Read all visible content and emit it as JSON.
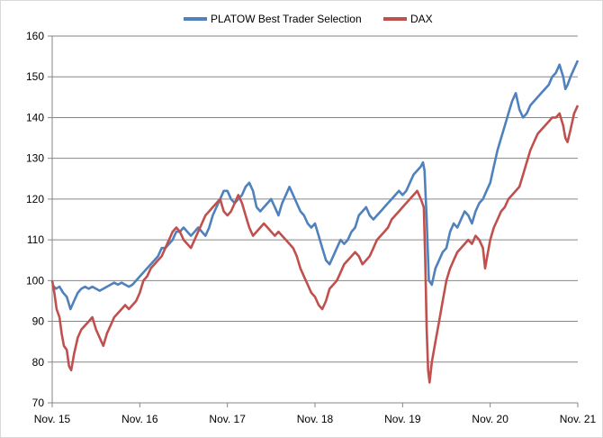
{
  "chart_data": {
    "type": "line",
    "title": "",
    "xlabel": "",
    "ylabel": "",
    "ylim": [
      70,
      160
    ],
    "yticks": [
      70,
      80,
      90,
      100,
      110,
      120,
      130,
      140,
      150,
      160
    ],
    "xlim": [
      0,
      72
    ],
    "xticks": [
      {
        "label": "Nov. 15",
        "x": 0
      },
      {
        "label": "Nov. 16",
        "x": 12
      },
      {
        "label": "Nov. 17",
        "x": 24
      },
      {
        "label": "Nov. 18",
        "x": 36
      },
      {
        "label": "Nov. 19",
        "x": 48
      },
      {
        "label": "Nov. 20",
        "x": 60
      },
      {
        "label": "Nov. 21",
        "x": 72
      }
    ],
    "grid": true,
    "legend_position": "top-center",
    "series": [
      {
        "name": "PLATOW Best Trader Selection",
        "color": "#4f81bd",
        "points": [
          [
            0,
            99
          ],
          [
            0.5,
            98
          ],
          [
            1,
            98.5
          ],
          [
            1.5,
            97
          ],
          [
            2,
            96
          ],
          [
            2.5,
            93
          ],
          [
            3,
            95
          ],
          [
            3.5,
            97
          ],
          [
            4,
            98
          ],
          [
            4.5,
            98.5
          ],
          [
            5,
            98
          ],
          [
            5.5,
            98.5
          ],
          [
            6,
            98
          ],
          [
            6.5,
            97.5
          ],
          [
            7,
            98
          ],
          [
            7.5,
            98.5
          ],
          [
            8,
            99
          ],
          [
            8.5,
            99.5
          ],
          [
            9,
            99
          ],
          [
            9.5,
            99.5
          ],
          [
            10,
            99
          ],
          [
            10.5,
            98.5
          ],
          [
            11,
            99
          ],
          [
            11.5,
            100
          ],
          [
            12,
            101
          ],
          [
            12.5,
            102
          ],
          [
            13,
            103
          ],
          [
            13.5,
            104
          ],
          [
            14,
            105
          ],
          [
            14.5,
            106
          ],
          [
            15,
            108
          ],
          [
            15.5,
            108
          ],
          [
            16,
            109
          ],
          [
            16.5,
            110
          ],
          [
            17,
            112
          ],
          [
            17.5,
            112
          ],
          [
            18,
            113
          ],
          [
            18.5,
            112
          ],
          [
            19,
            111
          ],
          [
            19.5,
            112
          ],
          [
            20,
            113
          ],
          [
            20.5,
            112
          ],
          [
            21,
            111
          ],
          [
            21.5,
            113
          ],
          [
            22,
            116
          ],
          [
            22.5,
            118
          ],
          [
            23,
            120
          ],
          [
            23.5,
            122
          ],
          [
            24,
            122
          ],
          [
            24.5,
            120
          ],
          [
            25,
            119
          ],
          [
            25.5,
            120
          ],
          [
            26,
            121
          ],
          [
            26.5,
            123
          ],
          [
            27,
            124
          ],
          [
            27.5,
            122
          ],
          [
            28,
            118
          ],
          [
            28.5,
            117
          ],
          [
            29,
            118
          ],
          [
            29.5,
            119
          ],
          [
            30,
            120
          ],
          [
            30.5,
            118
          ],
          [
            31,
            116
          ],
          [
            31.5,
            119
          ],
          [
            32,
            121
          ],
          [
            32.5,
            123
          ],
          [
            33,
            121
          ],
          [
            33.5,
            119
          ],
          [
            34,
            117
          ],
          [
            34.5,
            116
          ],
          [
            35,
            114
          ],
          [
            35.5,
            113
          ],
          [
            36,
            114
          ],
          [
            36.5,
            111
          ],
          [
            37,
            108
          ],
          [
            37.5,
            105
          ],
          [
            38,
            104
          ],
          [
            38.5,
            106
          ],
          [
            39,
            108
          ],
          [
            39.5,
            110
          ],
          [
            40,
            109
          ],
          [
            40.5,
            110
          ],
          [
            41,
            112
          ],
          [
            41.5,
            113
          ],
          [
            42,
            116
          ],
          [
            42.5,
            117
          ],
          [
            43,
            118
          ],
          [
            43.5,
            116
          ],
          [
            44,
            115
          ],
          [
            44.5,
            116
          ],
          [
            45,
            117
          ],
          [
            45.5,
            118
          ],
          [
            46,
            119
          ],
          [
            46.5,
            120
          ],
          [
            47,
            121
          ],
          [
            47.5,
            122
          ],
          [
            48,
            121
          ],
          [
            48.5,
            122
          ],
          [
            49,
            124
          ],
          [
            49.5,
            126
          ],
          [
            50,
            127
          ],
          [
            50.5,
            128
          ],
          [
            50.8,
            129
          ],
          [
            51,
            127
          ],
          [
            51.3,
            115
          ],
          [
            51.6,
            100
          ],
          [
            52,
            99
          ],
          [
            52.5,
            103
          ],
          [
            53,
            105
          ],
          [
            53.5,
            107
          ],
          [
            54,
            108
          ],
          [
            54.5,
            112
          ],
          [
            55,
            114
          ],
          [
            55.5,
            113
          ],
          [
            56,
            115
          ],
          [
            56.5,
            117
          ],
          [
            57,
            116
          ],
          [
            57.5,
            114
          ],
          [
            58,
            117
          ],
          [
            58.5,
            119
          ],
          [
            59,
            120
          ],
          [
            59.5,
            122
          ],
          [
            60,
            124
          ],
          [
            60.5,
            128
          ],
          [
            61,
            132
          ],
          [
            61.5,
            135
          ],
          [
            62,
            138
          ],
          [
            62.5,
            141
          ],
          [
            63,
            144
          ],
          [
            63.5,
            146
          ],
          [
            64,
            142
          ],
          [
            64.5,
            140
          ],
          [
            65,
            141
          ],
          [
            65.5,
            143
          ],
          [
            66,
            144
          ],
          [
            66.5,
            145
          ],
          [
            67,
            146
          ],
          [
            67.5,
            147
          ],
          [
            68,
            148
          ],
          [
            68.5,
            150
          ],
          [
            69,
            151
          ],
          [
            69.5,
            153
          ],
          [
            70,
            150
          ],
          [
            70.3,
            147
          ],
          [
            70.6,
            148
          ],
          [
            71,
            150
          ],
          [
            71.5,
            152
          ],
          [
            72,
            154
          ]
        ]
      },
      {
        "name": "DAX",
        "color": "#c0504d",
        "points": [
          [
            0,
            100
          ],
          [
            0.3,
            97
          ],
          [
            0.6,
            93
          ],
          [
            1,
            91
          ],
          [
            1.3,
            87
          ],
          [
            1.6,
            84
          ],
          [
            2,
            83
          ],
          [
            2.3,
            79
          ],
          [
            2.6,
            78
          ],
          [
            3,
            82
          ],
          [
            3.5,
            86
          ],
          [
            4,
            88
          ],
          [
            4.5,
            89
          ],
          [
            5,
            90
          ],
          [
            5.5,
            91
          ],
          [
            6,
            88
          ],
          [
            6.5,
            86
          ],
          [
            7,
            84
          ],
          [
            7.5,
            87
          ],
          [
            8,
            89
          ],
          [
            8.5,
            91
          ],
          [
            9,
            92
          ],
          [
            9.5,
            93
          ],
          [
            10,
            94
          ],
          [
            10.5,
            93
          ],
          [
            11,
            94
          ],
          [
            11.5,
            95
          ],
          [
            12,
            97
          ],
          [
            12.5,
            100
          ],
          [
            13,
            101
          ],
          [
            13.5,
            103
          ],
          [
            14,
            104
          ],
          [
            14.5,
            105
          ],
          [
            15,
            106
          ],
          [
            15.5,
            108
          ],
          [
            16,
            110
          ],
          [
            16.5,
            112
          ],
          [
            17,
            113
          ],
          [
            17.5,
            112
          ],
          [
            18,
            110
          ],
          [
            18.5,
            109
          ],
          [
            19,
            108
          ],
          [
            19.5,
            110
          ],
          [
            20,
            112
          ],
          [
            20.5,
            114
          ],
          [
            21,
            116
          ],
          [
            21.5,
            117
          ],
          [
            22,
            118
          ],
          [
            22.5,
            119
          ],
          [
            23,
            120
          ],
          [
            23.5,
            117
          ],
          [
            24,
            116
          ],
          [
            24.5,
            117
          ],
          [
            25,
            119
          ],
          [
            25.5,
            121
          ],
          [
            26,
            119
          ],
          [
            26.5,
            116
          ],
          [
            27,
            113
          ],
          [
            27.5,
            111
          ],
          [
            28,
            112
          ],
          [
            28.5,
            113
          ],
          [
            29,
            114
          ],
          [
            29.5,
            113
          ],
          [
            30,
            112
          ],
          [
            30.5,
            111
          ],
          [
            31,
            112
          ],
          [
            31.5,
            111
          ],
          [
            32,
            110
          ],
          [
            32.5,
            109
          ],
          [
            33,
            108
          ],
          [
            33.5,
            106
          ],
          [
            34,
            103
          ],
          [
            34.5,
            101
          ],
          [
            35,
            99
          ],
          [
            35.5,
            97
          ],
          [
            36,
            96
          ],
          [
            36.5,
            94
          ],
          [
            37,
            93
          ],
          [
            37.5,
            95
          ],
          [
            38,
            98
          ],
          [
            38.5,
            99
          ],
          [
            39,
            100
          ],
          [
            39.5,
            102
          ],
          [
            40,
            104
          ],
          [
            40.5,
            105
          ],
          [
            41,
            106
          ],
          [
            41.5,
            107
          ],
          [
            42,
            106
          ],
          [
            42.5,
            104
          ],
          [
            43,
            105
          ],
          [
            43.5,
            106
          ],
          [
            44,
            108
          ],
          [
            44.5,
            110
          ],
          [
            45,
            111
          ],
          [
            45.5,
            112
          ],
          [
            46,
            113
          ],
          [
            46.5,
            115
          ],
          [
            47,
            116
          ],
          [
            47.5,
            117
          ],
          [
            48,
            118
          ],
          [
            48.5,
            119
          ],
          [
            49,
            120
          ],
          [
            49.5,
            121
          ],
          [
            50,
            122
          ],
          [
            50.5,
            120
          ],
          [
            50.9,
            118
          ],
          [
            51.1,
            105
          ],
          [
            51.3,
            88
          ],
          [
            51.5,
            78
          ],
          [
            51.7,
            75
          ],
          [
            52,
            80
          ],
          [
            52.5,
            85
          ],
          [
            53,
            90
          ],
          [
            53.5,
            95
          ],
          [
            54,
            100
          ],
          [
            54.5,
            103
          ],
          [
            55,
            105
          ],
          [
            55.5,
            107
          ],
          [
            56,
            108
          ],
          [
            56.5,
            109
          ],
          [
            57,
            110
          ],
          [
            57.5,
            109
          ],
          [
            58,
            111
          ],
          [
            58.5,
            110
          ],
          [
            59,
            108
          ],
          [
            59.3,
            103
          ],
          [
            59.6,
            106
          ],
          [
            60,
            110
          ],
          [
            60.5,
            113
          ],
          [
            61,
            115
          ],
          [
            61.5,
            117
          ],
          [
            62,
            118
          ],
          [
            62.5,
            120
          ],
          [
            63,
            121
          ],
          [
            63.5,
            122
          ],
          [
            64,
            123
          ],
          [
            64.5,
            126
          ],
          [
            65,
            129
          ],
          [
            65.5,
            132
          ],
          [
            66,
            134
          ],
          [
            66.5,
            136
          ],
          [
            67,
            137
          ],
          [
            67.5,
            138
          ],
          [
            68,
            139
          ],
          [
            68.5,
            140
          ],
          [
            69,
            140
          ],
          [
            69.5,
            141
          ],
          [
            70,
            138
          ],
          [
            70.3,
            135
          ],
          [
            70.6,
            134
          ],
          [
            71,
            137
          ],
          [
            71.5,
            141
          ],
          [
            72,
            143
          ]
        ]
      }
    ]
  }
}
